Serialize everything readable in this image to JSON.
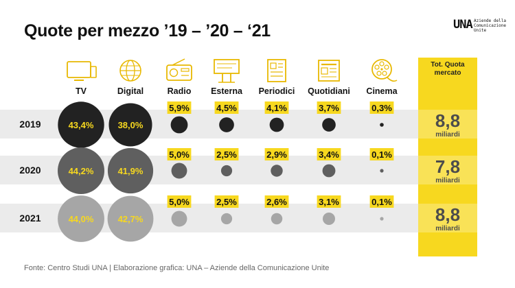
{
  "title": "Quote per mezzo ’19 – ’20 – ‘21",
  "logo": {
    "mark": "UNA",
    "text": "Aziende della Comunicazione Unite"
  },
  "footer": "Fonte: Centro Studi UNA | Elaborazione grafica: UNA – Aziende della Comunicazione Unite",
  "colors": {
    "accent": "#f7d81f",
    "row_band": "#ebebeb",
    "year_2019": "#222222",
    "year_2020": "#5f5f5f",
    "year_2021": "#a6a6a6"
  },
  "chart_data": {
    "type": "bubble-table",
    "title": "Quote per mezzo ’19 – ’20 – ‘21",
    "categories": [
      "TV",
      "Digital",
      "Radio",
      "Esterna",
      "Periodici",
      "Quotidiani",
      "Cinema"
    ],
    "icons": [
      "tv-icon",
      "globe-icon",
      "radio-icon",
      "billboard-icon",
      "magazine-icon",
      "newspaper-icon",
      "film-reel-icon"
    ],
    "series": [
      {
        "name": "2019",
        "values": [
          43.4,
          38.0,
          5.9,
          4.5,
          4.1,
          3.7,
          0.3
        ],
        "labels": [
          "43,4%",
          "38,0%",
          "5,9%",
          "4,5%",
          "4,1%",
          "3,7%",
          "0,3%"
        ]
      },
      {
        "name": "2020",
        "values": [
          44.2,
          41.9,
          5.0,
          2.5,
          2.9,
          3.4,
          0.1
        ],
        "labels": [
          "44,2%",
          "41,9%",
          "5,0%",
          "2,5%",
          "2,9%",
          "3,4%",
          "0,1%"
        ]
      },
      {
        "name": "2021",
        "values": [
          44.0,
          42.7,
          5.0,
          2.5,
          2.6,
          3.1,
          0.1
        ],
        "labels": [
          "44,0%",
          "42,7%",
          "5,0%",
          "2,5%",
          "2,6%",
          "3,1%",
          "0,1%"
        ]
      }
    ],
    "total": {
      "header": [
        "Tot. Quota",
        "mercato"
      ],
      "values": [
        "8,8",
        "7,8",
        "8,8"
      ],
      "unit": "miliardi"
    }
  }
}
